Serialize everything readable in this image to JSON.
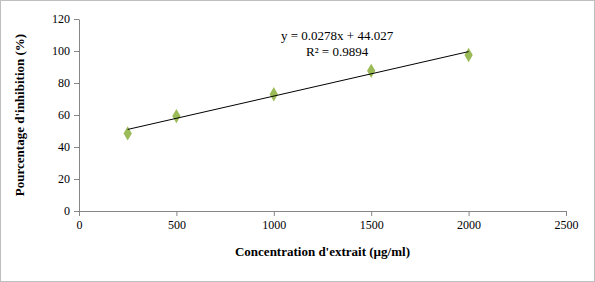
{
  "chart_data": {
    "type": "scatter",
    "x_label": "Concentration d'extrait (µg/ml)",
    "y_label": "Pourcentage d'inhibition (%)",
    "series": [
      {
        "type": "scatter",
        "x": [
          250,
          500,
          1000,
          1500,
          2000
        ],
        "values": [
          48.5,
          59.3,
          73,
          87.6,
          97.5
        ],
        "color": "#9bbb59",
        "marker": "diamond"
      },
      {
        "type": "line",
        "x": [
          250,
          2000
        ],
        "values": [
          50.977,
          99.627
        ],
        "color": "#000000",
        "line_style": "solid"
      }
    ],
    "annotations": [
      "y = 0.0278x + 44.027",
      "R² = 0.9894"
    ],
    "xlim": [
      0,
      2500
    ],
    "xticks": [
      0,
      500,
      1000,
      1500,
      2000,
      2500
    ],
    "ylim": [
      0,
      120
    ],
    "yticks": [
      0,
      20,
      40,
      60,
      80,
      100,
      120
    ],
    "grid": false
  }
}
